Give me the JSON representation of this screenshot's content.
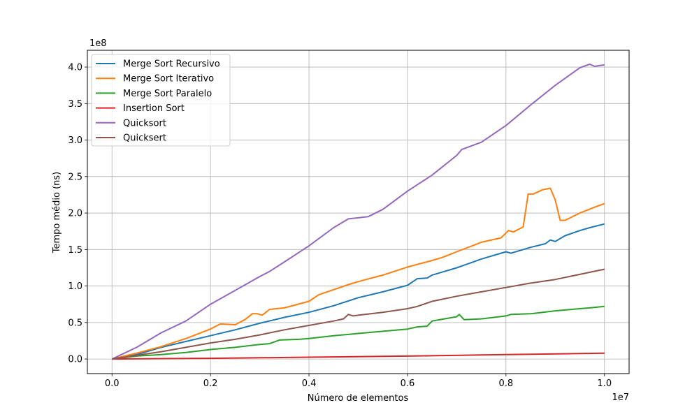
{
  "chart_data": {
    "type": "line",
    "title": "",
    "xlabel": "Número de elementos",
    "ylabel": "Tempo médio (ns)",
    "x_offset_label": "1e7",
    "y_offset_label": "1e8",
    "x_ticks": [
      0,
      2000000,
      4000000,
      6000000,
      8000000,
      10000000
    ],
    "x_tick_labels": [
      "0.0",
      "0.2",
      "0.4",
      "0.6",
      "0.8",
      "1.0"
    ],
    "y_ticks": [
      0,
      50000000,
      100000000,
      150000000,
      200000000,
      250000000,
      300000000,
      350000000,
      400000000
    ],
    "y_tick_labels": [
      "0.0",
      "0.5",
      "1.0",
      "1.5",
      "2.0",
      "2.5",
      "3.0",
      "3.5",
      "4.0"
    ],
    "xlim": [
      -500000,
      10500000
    ],
    "ylim": [
      -20000000,
      423000000
    ],
    "grid": true,
    "legend_position": "top-left",
    "series": [
      {
        "name": "Merge Sort Recursivo",
        "color": "#1f77b4",
        "points": [
          [
            0,
            0
          ],
          [
            500000,
            6000000
          ],
          [
            1000000,
            16000000
          ],
          [
            1500000,
            24000000
          ],
          [
            2000000,
            32000000
          ],
          [
            2500000,
            40000000
          ],
          [
            3000000,
            49000000
          ],
          [
            3500000,
            57000000
          ],
          [
            4000000,
            64000000
          ],
          [
            4500000,
            73000000
          ],
          [
            5000000,
            84000000
          ],
          [
            5500000,
            92000000
          ],
          [
            6000000,
            101000000
          ],
          [
            6200000,
            110000000
          ],
          [
            6400000,
            111000000
          ],
          [
            6500000,
            115000000
          ],
          [
            7000000,
            125000000
          ],
          [
            7500000,
            137000000
          ],
          [
            8000000,
            147000000
          ],
          [
            8100000,
            145000000
          ],
          [
            8500000,
            153000000
          ],
          [
            8800000,
            158000000
          ],
          [
            8900000,
            163000000
          ],
          [
            9000000,
            161000000
          ],
          [
            9200000,
            169000000
          ],
          [
            9500000,
            176000000
          ],
          [
            9700000,
            180000000
          ],
          [
            10000000,
            185000000
          ]
        ]
      },
      {
        "name": "Merge Sort Iterativo",
        "color": "#ff7f0e",
        "points": [
          [
            0,
            0
          ],
          [
            500000,
            8000000
          ],
          [
            1000000,
            17000000
          ],
          [
            1500000,
            28000000
          ],
          [
            2000000,
            41000000
          ],
          [
            2200000,
            48000000
          ],
          [
            2500000,
            47000000
          ],
          [
            2700000,
            54000000
          ],
          [
            2850000,
            62000000
          ],
          [
            2950000,
            62000000
          ],
          [
            3050000,
            60000000
          ],
          [
            3200000,
            68000000
          ],
          [
            3500000,
            70000000
          ],
          [
            4000000,
            79000000
          ],
          [
            4200000,
            88000000
          ],
          [
            4500000,
            95000000
          ],
          [
            4800000,
            102000000
          ],
          [
            5000000,
            106000000
          ],
          [
            5500000,
            115000000
          ],
          [
            6000000,
            126000000
          ],
          [
            6500000,
            135000000
          ],
          [
            6700000,
            139000000
          ],
          [
            7000000,
            147000000
          ],
          [
            7500000,
            160000000
          ],
          [
            7900000,
            166000000
          ],
          [
            8050000,
            176000000
          ],
          [
            8150000,
            174000000
          ],
          [
            8350000,
            181000000
          ],
          [
            8450000,
            226000000
          ],
          [
            8550000,
            226000000
          ],
          [
            8750000,
            232000000
          ],
          [
            8900000,
            234000000
          ],
          [
            9000000,
            218000000
          ],
          [
            9100000,
            190000000
          ],
          [
            9200000,
            190000000
          ],
          [
            9500000,
            200000000
          ],
          [
            9800000,
            208000000
          ],
          [
            10000000,
            213000000
          ]
        ]
      },
      {
        "name": "Merge Sort Paralelo",
        "color": "#2ca02c",
        "points": [
          [
            0,
            0
          ],
          [
            500000,
            4000000
          ],
          [
            1000000,
            6000000
          ],
          [
            1500000,
            9000000
          ],
          [
            2000000,
            13000000
          ],
          [
            2500000,
            16000000
          ],
          [
            3000000,
            20000000
          ],
          [
            3200000,
            21000000
          ],
          [
            3400000,
            26000000
          ],
          [
            3800000,
            27000000
          ],
          [
            4000000,
            28000000
          ],
          [
            4500000,
            32000000
          ],
          [
            5000000,
            35000000
          ],
          [
            5500000,
            38000000
          ],
          [
            6000000,
            41000000
          ],
          [
            6200000,
            44000000
          ],
          [
            6400000,
            45000000
          ],
          [
            6500000,
            52000000
          ],
          [
            7000000,
            58000000
          ],
          [
            7050000,
            61000000
          ],
          [
            7150000,
            54000000
          ],
          [
            7500000,
            55000000
          ],
          [
            8000000,
            59000000
          ],
          [
            8100000,
            61000000
          ],
          [
            8500000,
            62000000
          ],
          [
            9000000,
            66000000
          ],
          [
            9500000,
            69000000
          ],
          [
            9700000,
            70000000
          ],
          [
            10000000,
            72000000
          ]
        ]
      },
      {
        "name": "Insertion Sort",
        "color": "#d62728",
        "points": [
          [
            0,
            0
          ],
          [
            2000000,
            1000000
          ],
          [
            4000000,
            2500000
          ],
          [
            6000000,
            4000000
          ],
          [
            8000000,
            6000000
          ],
          [
            10000000,
            8000000
          ]
        ]
      },
      {
        "name": "Quicksort",
        "color": "#9467bd",
        "points": [
          [
            0,
            0
          ],
          [
            500000,
            16000000
          ],
          [
            1000000,
            36000000
          ],
          [
            1500000,
            52000000
          ],
          [
            2000000,
            75000000
          ],
          [
            2500000,
            94000000
          ],
          [
            3000000,
            113000000
          ],
          [
            3200000,
            120000000
          ],
          [
            3500000,
            133000000
          ],
          [
            4000000,
            155000000
          ],
          [
            4500000,
            180000000
          ],
          [
            4800000,
            192000000
          ],
          [
            5200000,
            195000000
          ],
          [
            5500000,
            205000000
          ],
          [
            6000000,
            230000000
          ],
          [
            6500000,
            252000000
          ],
          [
            7000000,
            279000000
          ],
          [
            7100000,
            287000000
          ],
          [
            7500000,
            297000000
          ],
          [
            8000000,
            320000000
          ],
          [
            8500000,
            348000000
          ],
          [
            9000000,
            375000000
          ],
          [
            9500000,
            399000000
          ],
          [
            9700000,
            404000000
          ],
          [
            9800000,
            401000000
          ],
          [
            10000000,
            403000000
          ]
        ]
      },
      {
        "name": "Quicksert",
        "color": "#8c564b",
        "points": [
          [
            0,
            0
          ],
          [
            500000,
            5000000
          ],
          [
            1000000,
            10000000
          ],
          [
            1500000,
            16000000
          ],
          [
            2000000,
            22000000
          ],
          [
            2500000,
            27000000
          ],
          [
            3000000,
            33000000
          ],
          [
            3500000,
            40000000
          ],
          [
            4000000,
            46000000
          ],
          [
            4500000,
            52000000
          ],
          [
            4700000,
            55000000
          ],
          [
            4800000,
            61000000
          ],
          [
            4900000,
            59000000
          ],
          [
            5000000,
            60000000
          ],
          [
            5500000,
            64000000
          ],
          [
            6000000,
            69000000
          ],
          [
            6200000,
            72000000
          ],
          [
            6500000,
            79000000
          ],
          [
            7000000,
            86000000
          ],
          [
            7500000,
            92000000
          ],
          [
            8000000,
            98000000
          ],
          [
            8500000,
            104000000
          ],
          [
            9000000,
            109000000
          ],
          [
            9500000,
            116000000
          ],
          [
            10000000,
            123000000
          ]
        ]
      }
    ]
  }
}
